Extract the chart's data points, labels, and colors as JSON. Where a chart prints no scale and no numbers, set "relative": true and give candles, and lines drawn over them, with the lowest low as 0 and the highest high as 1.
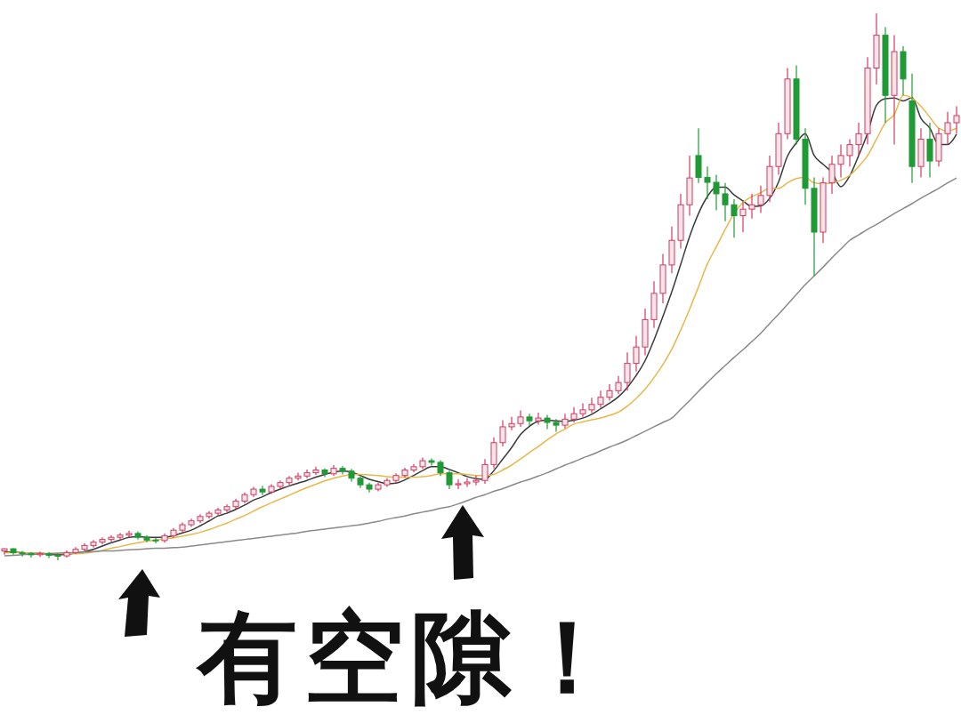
{
  "chart_data": {
    "type": "candlestick",
    "relative": true,
    "categories": [
      null,
      null,
      null,
      null,
      null,
      null,
      null,
      null,
      null,
      null,
      null,
      null,
      null,
      null,
      null,
      null,
      null,
      null,
      null,
      null,
      null,
      null,
      null,
      null,
      null,
      null,
      null,
      null,
      null,
      null,
      null,
      null,
      null,
      null,
      null,
      null,
      null,
      null,
      null,
      null,
      null,
      null,
      null,
      null,
      null,
      null,
      null,
      null,
      null,
      null,
      null,
      null,
      null,
      null,
      null,
      null,
      null,
      null,
      null,
      null,
      null,
      null,
      null,
      null,
      null,
      null,
      null,
      null,
      null,
      null,
      null,
      null,
      null,
      null,
      null,
      null,
      null,
      null,
      null,
      null,
      null,
      null,
      null,
      null,
      null,
      null,
      null,
      null,
      null,
      null,
      null,
      null,
      null,
      null,
      null,
      null,
      null,
      null,
      null,
      null,
      null,
      null,
      null,
      null,
      null,
      null,
      null,
      null
    ],
    "ohlc": [
      [
        0.017,
        0.022,
        0.01,
        0.021
      ],
      [
        0.021,
        0.022,
        0.01,
        0.014
      ],
      [
        0.014,
        0.017,
        0.007,
        0.012
      ],
      [
        0.012,
        0.015,
        0.005,
        0.01
      ],
      [
        0.01,
        0.016,
        0.006,
        0.012
      ],
      [
        0.012,
        0.015,
        0.004,
        0.009
      ],
      [
        0.009,
        0.012,
        0,
        0.008
      ],
      [
        0.008,
        0.018,
        0.005,
        0.014
      ],
      [
        0.014,
        0.024,
        0.011,
        0.02
      ],
      [
        0.02,
        0.031,
        0.017,
        0.027
      ],
      [
        0.027,
        0.037,
        0.023,
        0.033
      ],
      [
        0.033,
        0.042,
        0.029,
        0.038
      ],
      [
        0.038,
        0.046,
        0.034,
        0.042
      ],
      [
        0.042,
        0.05,
        0.038,
        0.046
      ],
      [
        0.046,
        0.054,
        0.042,
        0.049
      ],
      [
        0.049,
        0.053,
        0.038,
        0.042
      ],
      [
        0.042,
        0.046,
        0.033,
        0.037
      ],
      [
        0.037,
        0.041,
        0.031,
        0.036
      ],
      [
        0.036,
        0.049,
        0.032,
        0.045
      ],
      [
        0.045,
        0.059,
        0.041,
        0.055
      ],
      [
        0.055,
        0.069,
        0.051,
        0.065
      ],
      [
        0.065,
        0.076,
        0.061,
        0.072
      ],
      [
        0.072,
        0.084,
        0.068,
        0.08
      ],
      [
        0.08,
        0.09,
        0.076,
        0.086
      ],
      [
        0.086,
        0.096,
        0.082,
        0.092
      ],
      [
        0.092,
        0.102,
        0.088,
        0.098
      ],
      [
        0.098,
        0.112,
        0.094,
        0.108
      ],
      [
        0.108,
        0.124,
        0.104,
        0.12
      ],
      [
        0.12,
        0.134,
        0.116,
        0.13
      ],
      [
        0.13,
        0.136,
        0.119,
        0.125
      ],
      [
        0.125,
        0.139,
        0.121,
        0.135
      ],
      [
        0.135,
        0.146,
        0.131,
        0.142
      ],
      [
        0.142,
        0.154,
        0.138,
        0.15
      ],
      [
        0.15,
        0.16,
        0.146,
        0.154
      ],
      [
        0.154,
        0.166,
        0.15,
        0.16
      ],
      [
        0.16,
        0.171,
        0.156,
        0.165
      ],
      [
        0.165,
        0.168,
        0.152,
        0.158
      ],
      [
        0.158,
        0.174,
        0.154,
        0.168
      ],
      [
        0.168,
        0.172,
        0.157,
        0.163
      ],
      [
        0.163,
        0.167,
        0.144,
        0.15
      ],
      [
        0.15,
        0.154,
        0.132,
        0.138
      ],
      [
        0.138,
        0.142,
        0.124,
        0.13
      ],
      [
        0.13,
        0.142,
        0.126,
        0.138
      ],
      [
        0.138,
        0.15,
        0.134,
        0.146
      ],
      [
        0.146,
        0.159,
        0.142,
        0.155
      ],
      [
        0.155,
        0.169,
        0.151,
        0.165
      ],
      [
        0.165,
        0.176,
        0.161,
        0.171
      ],
      [
        0.171,
        0.188,
        0.167,
        0.182
      ],
      [
        0.182,
        0.186,
        0.173,
        0.179
      ],
      [
        0.179,
        0.183,
        0.154,
        0.16
      ],
      [
        0.16,
        0.164,
        0.13,
        0.138
      ],
      [
        0.138,
        0.148,
        0.13,
        0.14
      ],
      [
        0.14,
        0.15,
        0.134,
        0.143
      ],
      [
        0.143,
        0.155,
        0.137,
        0.146
      ],
      [
        0.146,
        0.185,
        0.14,
        0.175
      ],
      [
        0.175,
        0.225,
        0.168,
        0.215
      ],
      [
        0.215,
        0.256,
        0.208,
        0.244
      ],
      [
        0.244,
        0.262,
        0.238,
        0.25
      ],
      [
        0.25,
        0.274,
        0.244,
        0.262
      ],
      [
        0.262,
        0.268,
        0.246,
        0.255
      ],
      [
        0.255,
        0.27,
        0.248,
        0.26
      ],
      [
        0.26,
        0.266,
        0.24,
        0.252
      ],
      [
        0.252,
        0.258,
        0.235,
        0.247
      ],
      [
        0.247,
        0.268,
        0.241,
        0.258
      ],
      [
        0.258,
        0.28,
        0.252,
        0.268
      ],
      [
        0.268,
        0.287,
        0.262,
        0.275
      ],
      [
        0.275,
        0.297,
        0.269,
        0.285
      ],
      [
        0.285,
        0.31,
        0.279,
        0.298
      ],
      [
        0.298,
        0.322,
        0.292,
        0.31
      ],
      [
        0.31,
        0.337,
        0.304,
        0.325
      ],
      [
        0.325,
        0.38,
        0.31,
        0.36
      ],
      [
        0.36,
        0.41,
        0.345,
        0.39
      ],
      [
        0.39,
        0.46,
        0.375,
        0.44
      ],
      [
        0.44,
        0.51,
        0.425,
        0.488
      ],
      [
        0.488,
        0.56,
        0.47,
        0.54
      ],
      [
        0.54,
        0.61,
        0.525,
        0.585
      ],
      [
        0.585,
        0.67,
        0.57,
        0.65
      ],
      [
        0.65,
        0.74,
        0.63,
        0.699
      ],
      [
        0.74,
        0.79,
        0.69,
        0.7
      ],
      [
        0.7,
        0.72,
        0.66,
        0.691
      ],
      [
        0.691,
        0.705,
        0.64,
        0.67
      ],
      [
        0.67,
        0.69,
        0.62,
        0.65
      ],
      [
        0.65,
        0.66,
        0.59,
        0.63
      ],
      [
        0.63,
        0.655,
        0.6,
        0.642
      ],
      [
        0.642,
        0.67,
        0.625,
        0.65
      ],
      [
        0.65,
        0.685,
        0.635,
        0.667
      ],
      [
        0.667,
        0.74,
        0.655,
        0.72
      ],
      [
        0.72,
        0.8,
        0.705,
        0.78
      ],
      [
        0.78,
        0.9,
        0.77,
        0.88
      ],
      [
        0.88,
        0.905,
        0.76,
        0.77
      ],
      [
        0.77,
        0.79,
        0.65,
        0.68
      ],
      [
        0.68,
        0.7,
        0.52,
        0.6
      ],
      [
        0.6,
        0.7,
        0.58,
        0.69
      ],
      [
        0.69,
        0.74,
        0.67,
        0.724
      ],
      [
        0.724,
        0.76,
        0.7,
        0.74
      ],
      [
        0.74,
        0.77,
        0.72,
        0.76
      ],
      [
        0.76,
        0.8,
        0.74,
        0.78
      ],
      [
        0.78,
        0.92,
        0.76,
        0.9
      ],
      [
        0.9,
        1,
        0.87,
        0.96
      ],
      [
        0.96,
        0.975,
        0.8,
        0.85
      ],
      [
        0.85,
        0.96,
        0.76,
        0.93
      ],
      [
        0.93,
        0.94,
        0.85,
        0.88
      ],
      [
        0.84,
        0.89,
        0.69,
        0.72
      ],
      [
        0.72,
        0.79,
        0.7,
        0.77
      ],
      [
        0.77,
        0.8,
        0.7,
        0.73
      ],
      [
        0.73,
        0.79,
        0.72,
        0.78
      ],
      [
        0.78,
        0.82,
        0.76,
        0.8
      ],
      [
        0.8,
        0.83,
        0.78,
        0.813
      ]
    ],
    "series": [
      {
        "type": "line",
        "color": "#3a3a3a",
        "values": [
          0.015,
          0.015,
          0.014,
          0.013,
          0.013,
          0.011,
          0.01,
          0.011,
          0.013,
          0.016,
          0.02,
          0.026,
          0.032,
          0.037,
          0.042,
          0.043,
          0.042,
          0.042,
          0.042,
          0.045,
          0.05,
          0.055,
          0.063,
          0.072,
          0.081,
          0.086,
          0.093,
          0.101,
          0.11,
          0.116,
          0.124,
          0.13,
          0.136,
          0.141,
          0.146,
          0.152,
          0.157,
          0.161,
          0.163,
          0.161,
          0.155,
          0.148,
          0.144,
          0.14,
          0.141,
          0.147,
          0.155,
          0.164,
          0.171,
          0.171,
          0.166,
          0.16,
          0.153,
          0.149,
          0.148,
          0.164,
          0.185,
          0.206,
          0.23,
          0.245,
          0.254,
          0.256,
          0.255,
          0.254,
          0.256,
          0.26,
          0.267,
          0.277,
          0.287,
          0.299,
          0.316,
          0.338,
          0.365,
          0.403,
          0.446,
          0.491,
          0.541,
          0.592,
          0.634,
          0.665,
          0.682,
          0.682,
          0.668,
          0.657,
          0.647,
          0.648,
          0.662,
          0.692,
          0.739,
          0.763,
          0.78,
          0.74,
          0.724,
          0.709,
          0.683,
          0.703,
          0.74,
          0.781,
          0.832,
          0.844,
          0.845,
          0.84,
          0.846,
          0.808,
          0.79,
          0.76,
          0.76,
          0.779
        ]
      },
      {
        "type": "line",
        "color": "#e8b84a",
        "values": [
          0.014,
          0.014,
          0.014,
          0.013,
          0.013,
          0.012,
          0.012,
          0.012,
          0.012,
          0.013,
          0.015,
          0.018,
          0.022,
          0.025,
          0.029,
          0.032,
          0.035,
          0.037,
          0.039,
          0.041,
          0.044,
          0.047,
          0.051,
          0.056,
          0.062,
          0.068,
          0.075,
          0.082,
          0.09,
          0.098,
          0.105,
          0.112,
          0.119,
          0.126,
          0.133,
          0.139,
          0.145,
          0.15,
          0.154,
          0.157,
          0.157,
          0.156,
          0.155,
          0.153,
          0.152,
          0.152,
          0.152,
          0.153,
          0.155,
          0.158,
          0.158,
          0.158,
          0.157,
          0.155,
          0.155,
          0.157,
          0.165,
          0.174,
          0.185,
          0.197,
          0.208,
          0.22,
          0.231,
          0.24,
          0.249,
          0.253,
          0.257,
          0.26,
          0.265,
          0.271,
          0.282,
          0.296,
          0.313,
          0.334,
          0.358,
          0.386,
          0.421,
          0.459,
          0.5,
          0.542,
          0.573,
          0.605,
          0.634,
          0.654,
          0.665,
          0.672,
          0.68,
          0.68,
          0.69,
          0.698,
          0.7,
          0.69,
          0.689,
          0.69,
          0.695,
          0.704,
          0.72,
          0.74,
          0.77,
          0.8,
          0.815,
          0.85,
          0.845,
          0.83,
          0.81,
          0.79,
          0.785,
          0.79
        ]
      },
      {
        "type": "line",
        "color": "#8a8a8a",
        "values": [
          0.008,
          0.009,
          0.01,
          0.011,
          0.011,
          0.012,
          0.013,
          0.014,
          0.014,
          0.015,
          0.016,
          0.017,
          0.017,
          0.018,
          0.019,
          0.02,
          0.021,
          0.022,
          0.022,
          0.023,
          0.024,
          0.026,
          0.028,
          0.03,
          0.032,
          0.034,
          0.036,
          0.038,
          0.04,
          0.042,
          0.044,
          0.046,
          0.048,
          0.05,
          0.053,
          0.055,
          0.057,
          0.059,
          0.061,
          0.063,
          0.065,
          0.068,
          0.071,
          0.075,
          0.078,
          0.081,
          0.085,
          0.088,
          0.091,
          0.095,
          0.098,
          0.103,
          0.109,
          0.115,
          0.12,
          0.126,
          0.131,
          0.137,
          0.143,
          0.148,
          0.154,
          0.16,
          0.167,
          0.174,
          0.18,
          0.187,
          0.193,
          0.2,
          0.207,
          0.213,
          0.22,
          0.228,
          0.236,
          0.244,
          0.252,
          0.26,
          0.276,
          0.292,
          0.309,
          0.325,
          0.341,
          0.356,
          0.371,
          0.385,
          0.4,
          0.415,
          0.433,
          0.45,
          0.468,
          0.486,
          0.504,
          0.52,
          0.536,
          0.553,
          0.569,
          0.585,
          0.595,
          0.605,
          0.614,
          0.624,
          0.634,
          0.643,
          0.652,
          0.662,
          0.671,
          0.68,
          0.69,
          0.699
        ]
      }
    ],
    "annotations": [
      "有空隙！"
    ]
  }
}
